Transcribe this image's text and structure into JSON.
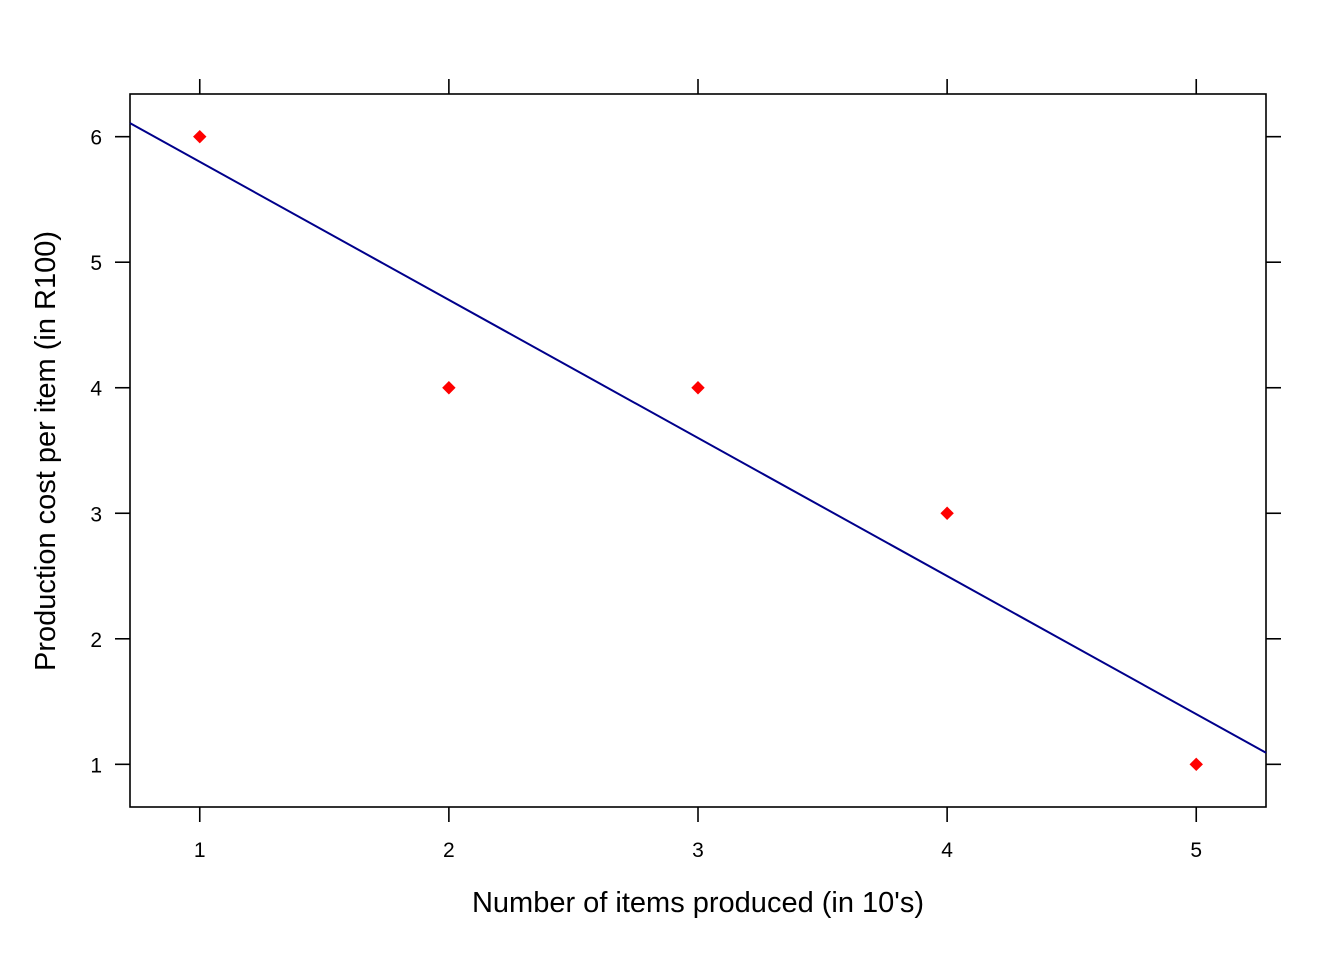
{
  "chart_data": {
    "type": "scatter",
    "title": "",
    "xlabel": "Number of items produced (in 10's)",
    "ylabel": "Production cost per item (in R100)",
    "xlim": [
      0.72,
      5.28
    ],
    "ylim": [
      0.66,
      6.34
    ],
    "xticks": [
      1,
      2,
      3,
      4,
      5
    ],
    "yticks": [
      1,
      2,
      3,
      4,
      5,
      6
    ],
    "points": {
      "x": [
        1,
        2,
        3,
        4,
        5
      ],
      "y": [
        6,
        4,
        4,
        3,
        1
      ],
      "color": "#ff0000",
      "marker": "diamond"
    },
    "regression_line": {
      "intercept": 6.9,
      "slope": -1.1,
      "color": "#00008b"
    },
    "grid": false,
    "frame": true
  }
}
